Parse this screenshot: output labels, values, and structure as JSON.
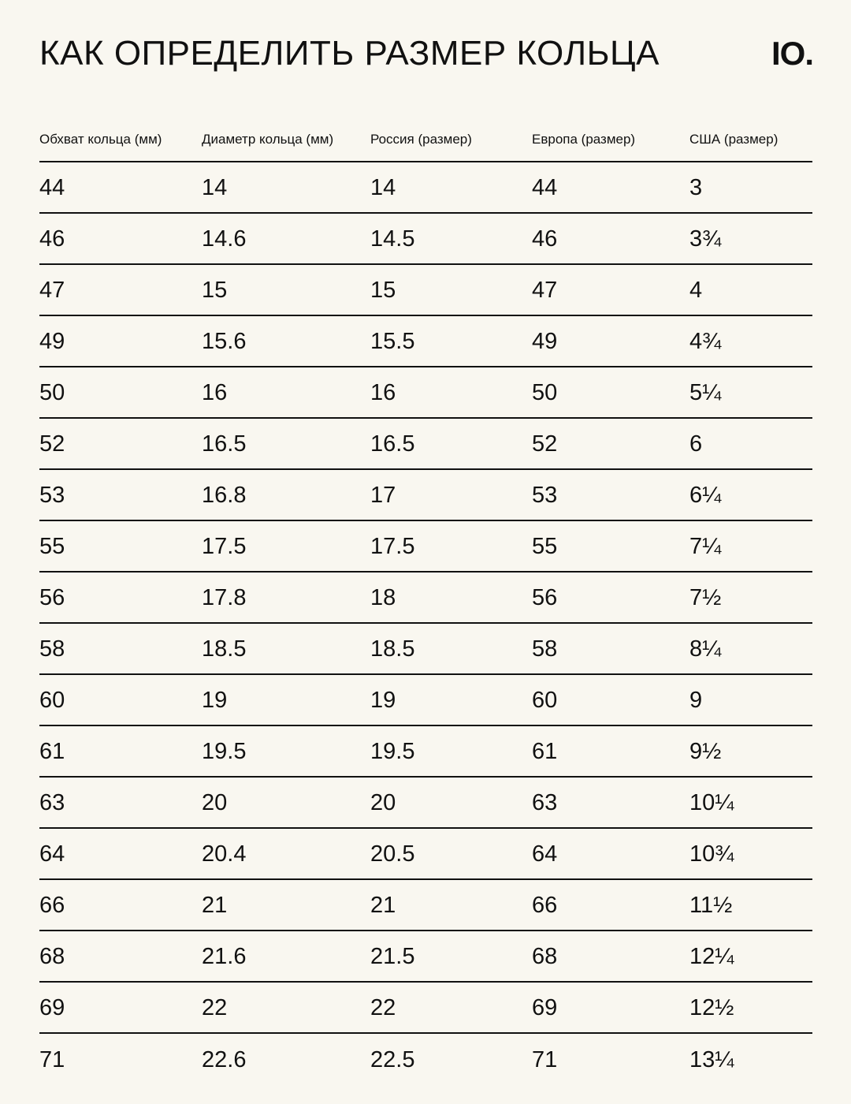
{
  "title": "КАК ОПРЕДЕЛИТЬ РАЗМЕР КОЛЬЦА",
  "logo": "IO.",
  "table": {
    "headers": [
      "Обхват кольца (мм)",
      "Диаметр кольца (мм)",
      "Россия (размер)",
      "Европа (размер)",
      "США (размер)"
    ],
    "rows": [
      [
        "44",
        "14",
        "14",
        "44",
        "3"
      ],
      [
        "46",
        "14.6",
        "14.5",
        "46",
        "3¾"
      ],
      [
        "47",
        "15",
        "15",
        "47",
        "4"
      ],
      [
        "49",
        "15.6",
        "15.5",
        "49",
        "4¾"
      ],
      [
        "50",
        "16",
        "16",
        "50",
        "5¼"
      ],
      [
        "52",
        "16.5",
        "16.5",
        "52",
        "6"
      ],
      [
        "53",
        "16.8",
        "17",
        "53",
        "6¼"
      ],
      [
        "55",
        "17.5",
        "17.5",
        "55",
        "7¼"
      ],
      [
        "56",
        "17.8",
        "18",
        "56",
        "7½"
      ],
      [
        "58",
        "18.5",
        "18.5",
        "58",
        "8¼"
      ],
      [
        "60",
        "19",
        "19",
        "60",
        "9"
      ],
      [
        "61",
        "19.5",
        "19.5",
        "61",
        "9½"
      ],
      [
        "63",
        "20",
        "20",
        "63",
        "10¼"
      ],
      [
        "64",
        "20.4",
        "20.5",
        "64",
        "10¾"
      ],
      [
        "66",
        "21",
        "21",
        "66",
        "11½"
      ],
      [
        "68",
        "21.6",
        "21.5",
        "68",
        "12¼"
      ],
      [
        "69",
        "22",
        "22",
        "69",
        "12½"
      ],
      [
        "71",
        "22.6",
        "22.5",
        "71",
        "13¼"
      ]
    ]
  }
}
